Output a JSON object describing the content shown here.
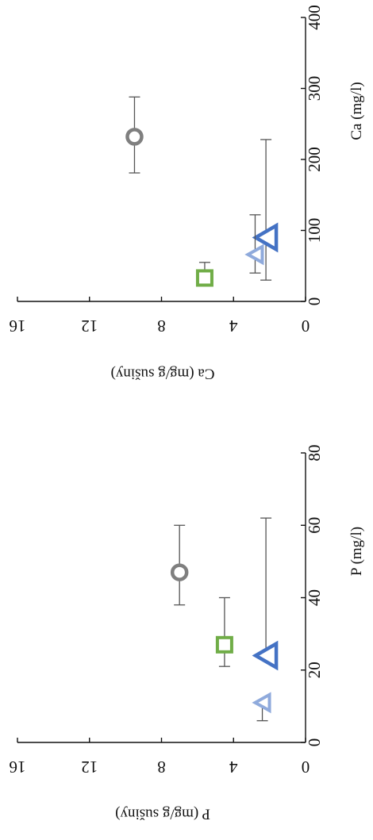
{
  "chart_data": [
    {
      "type": "scatter",
      "title": "",
      "xlabel": "Ca (mg/l)",
      "ylabel": "Ca (mg/g sušiny)",
      "xlim": [
        0,
        400
      ],
      "ylim": [
        0,
        16
      ],
      "xticks": [
        "0",
        "100",
        "200",
        "300",
        "400"
      ],
      "yticks": [
        "0",
        "4",
        "8",
        "12",
        "16"
      ],
      "grid": false,
      "legend": "none",
      "points": [
        {
          "marker": "circle",
          "color": "#7f7f7f",
          "x": 232,
          "y": 9.5,
          "xerr": [
            181,
            288
          ]
        },
        {
          "marker": "square",
          "color": "#70ad47",
          "x": 33,
          "y": 5.6,
          "xerr": [
            null,
            55
          ]
        },
        {
          "marker": "triangle-large",
          "color": "#4472c4",
          "x": 90,
          "y": 2.2,
          "xerr": [
            30,
            228
          ]
        },
        {
          "marker": "triangle-small",
          "color": "#8faadc",
          "x": 66,
          "y": 2.8,
          "xerr": [
            40,
            122
          ]
        }
      ]
    },
    {
      "type": "scatter",
      "title": "",
      "xlabel": "P (mg/l)",
      "ylabel": "P (mg/g sušiny)",
      "xlim": [
        0,
        80
      ],
      "ylim": [
        0,
        16
      ],
      "xticks": [
        "0",
        "20",
        "40",
        "60",
        "80"
      ],
      "yticks": [
        "0",
        "4",
        "8",
        "12",
        "16"
      ],
      "grid": false,
      "legend": "none",
      "points": [
        {
          "marker": "circle",
          "color": "#7f7f7f",
          "x": 47,
          "y": 7.0,
          "xerr": [
            38,
            60
          ]
        },
        {
          "marker": "square",
          "color": "#70ad47",
          "x": 27,
          "y": 4.5,
          "xerr": [
            21,
            40
          ]
        },
        {
          "marker": "triangle-large",
          "color": "#4472c4",
          "x": 24,
          "y": 2.2,
          "xerr": [
            null,
            62
          ]
        },
        {
          "marker": "triangle-small",
          "color": "#8faadc",
          "x": 11,
          "y": 2.4,
          "xerr": [
            6,
            null
          ]
        }
      ]
    }
  ]
}
